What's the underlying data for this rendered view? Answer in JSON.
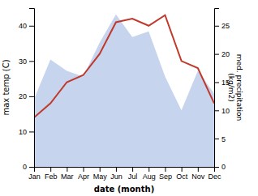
{
  "chart_data": {
    "type": "line",
    "categories": [
      "Jan",
      "Feb",
      "Mar",
      "Apr",
      "May",
      "Jun",
      "Jul",
      "Aug",
      "Sep",
      "Oct",
      "Nov",
      "Dec"
    ],
    "xlabel": "date (month)",
    "ylabel": "max temp (C)",
    "y2label": "med. precipitation\n(kg/m2)",
    "ylim": [
      0,
      45
    ],
    "yticks": [
      0,
      10,
      20,
      30,
      40
    ],
    "y2lim": [
      0,
      28.125
    ],
    "y2ticks": [
      0,
      5,
      10,
      15,
      20,
      25
    ],
    "series": [
      {
        "type": "area",
        "axis": "y2",
        "color": "#b3c6e8",
        "values": [
          12,
          19,
          17,
          16,
          22,
          27,
          23,
          24,
          16,
          10,
          17,
          13
        ]
      },
      {
        "type": "line",
        "color": "#c0392b",
        "values": [
          14,
          18,
          24,
          26,
          32,
          41,
          42,
          40,
          43,
          30,
          28,
          18
        ]
      }
    ]
  }
}
